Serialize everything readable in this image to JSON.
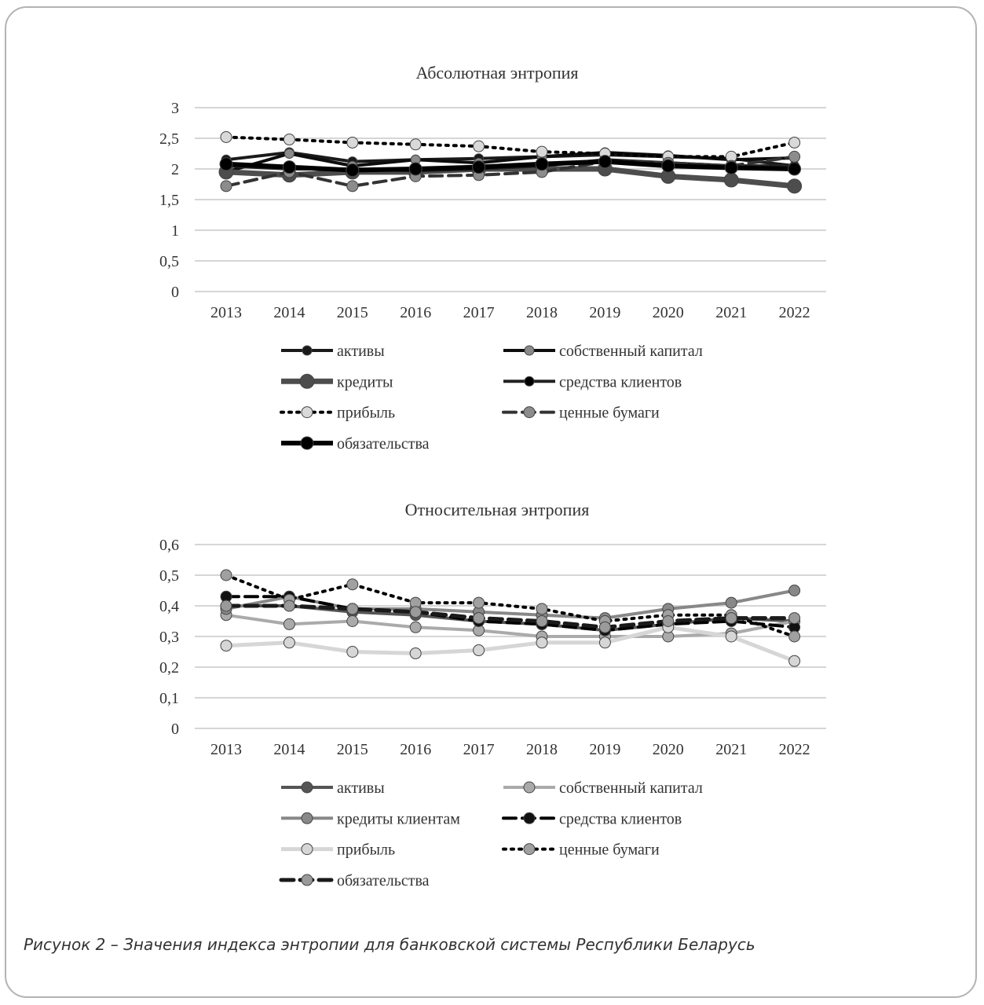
{
  "caption": "Рисунок 2 – Значения индекса энтропии для банковской системы Республики Беларусь",
  "chart_data": [
    {
      "type": "line",
      "title": "Абсолютная энтропия",
      "ylim": [
        0,
        3
      ],
      "yticks": [
        "0",
        "0,5",
        "1",
        "1,5",
        "2",
        "2,5",
        "3"
      ],
      "ytick_values": [
        0,
        0.5,
        1,
        1.5,
        2,
        2.5,
        3
      ],
      "categories": [
        "2013",
        "2014",
        "2015",
        "2016",
        "2017",
        "2018",
        "2019",
        "2020",
        "2021",
        "2022"
      ],
      "grid": true,
      "legend": "bottom",
      "series": [
        {
          "name": "активы",
          "values": [
            2.15,
            2.27,
            2.12,
            2.15,
            2.17,
            2.2,
            2.23,
            2.2,
            2.17,
            2.05
          ],
          "color": "#1a1a1a",
          "width": 4,
          "dash": "",
          "marker": 6,
          "marker_color": "#1a1a1a"
        },
        {
          "name": "собственный капитал",
          "values": [
            1.95,
            2.25,
            2.05,
            2.15,
            2.1,
            2.2,
            2.27,
            2.22,
            2.15,
            2.18
          ],
          "color": "#0d0d0d",
          "width": 4,
          "dash": "",
          "marker": 6,
          "marker_color": "#8a8a8a"
        },
        {
          "name": "кредиты",
          "values": [
            1.95,
            1.9,
            1.95,
            1.95,
            2.0,
            2.0,
            2.0,
            1.88,
            1.82,
            1.72
          ],
          "color": "#4d4d4d",
          "width": 7,
          "dash": "",
          "marker": 9,
          "marker_color": "#4d4d4d"
        },
        {
          "name": "средства клиентов",
          "values": [
            2.05,
            2.0,
            2.0,
            1.97,
            2.0,
            2.05,
            2.15,
            2.1,
            2.05,
            2.05
          ],
          "color": "#222222",
          "width": 4,
          "dash": "",
          "marker": 6,
          "marker_color": "#000000"
        },
        {
          "name": "прибыль",
          "values": [
            2.52,
            2.48,
            2.43,
            2.4,
            2.37,
            2.28,
            2.25,
            2.2,
            2.2,
            2.43
          ],
          "color": "#000000",
          "width": 4,
          "dash": "3,7",
          "marker": 7,
          "marker_color": "#d9d9d9"
        },
        {
          "name": "ценные бумаги",
          "values": [
            1.72,
            1.95,
            1.72,
            1.88,
            1.9,
            1.95,
            2.12,
            2.1,
            2.05,
            2.2
          ],
          "color": "#333333",
          "width": 4,
          "dash": "16,8",
          "marker": 7,
          "marker_color": "#8c8c8c"
        },
        {
          "name": "обязательства",
          "values": [
            2.08,
            2.03,
            1.98,
            2.0,
            2.03,
            2.08,
            2.12,
            2.05,
            2.02,
            2.0
          ],
          "color": "#000000",
          "width": 6,
          "dash": "",
          "marker": 8,
          "marker_color": "#000000"
        }
      ]
    },
    {
      "type": "line",
      "title": "Относительная энтропия",
      "ylim": [
        0,
        0.6
      ],
      "yticks": [
        "0",
        "0,1",
        "0,2",
        "0,3",
        "0,4",
        "0,5",
        "0,6"
      ],
      "ytick_values": [
        0,
        0.1,
        0.2,
        0.3,
        0.4,
        0.5,
        0.6
      ],
      "categories": [
        "2013",
        "2014",
        "2015",
        "2016",
        "2017",
        "2018",
        "2019",
        "2020",
        "2021",
        "2022"
      ],
      "grid": true,
      "legend": "bottom",
      "series": [
        {
          "name": "активы",
          "values": [
            0.4,
            0.4,
            0.38,
            0.37,
            0.35,
            0.34,
            0.32,
            0.34,
            0.36,
            0.35
          ],
          "color": "#555555",
          "width": 4,
          "dash": "",
          "marker": 7,
          "marker_color": "#555555"
        },
        {
          "name": "собственный капитал",
          "values": [
            0.37,
            0.34,
            0.35,
            0.33,
            0.32,
            0.3,
            0.3,
            0.3,
            0.31,
            0.35
          ],
          "color": "#aaaaaa",
          "width": 4,
          "dash": "",
          "marker": 7,
          "marker_color": "#aaaaaa"
        },
        {
          "name": "кредиты клиентам",
          "values": [
            0.39,
            0.43,
            0.39,
            0.39,
            0.38,
            0.37,
            0.36,
            0.39,
            0.41,
            0.45
          ],
          "color": "#888888",
          "width": 4,
          "dash": "",
          "marker": 7,
          "marker_color": "#888888"
        },
        {
          "name": "средства клиентов",
          "values": [
            0.43,
            0.43,
            0.39,
            0.38,
            0.35,
            0.34,
            0.32,
            0.34,
            0.35,
            0.33
          ],
          "color": "#000000",
          "width": 4,
          "dash": "16,8",
          "marker": 7,
          "marker_color": "#111111"
        },
        {
          "name": "прибыль",
          "values": [
            0.27,
            0.28,
            0.25,
            0.245,
            0.255,
            0.28,
            0.28,
            0.33,
            0.3,
            0.22
          ],
          "color": "#d6d6d6",
          "width": 5,
          "dash": "",
          "marker": 7,
          "marker_color": "#d6d6d6"
        },
        {
          "name": "ценные бумаги",
          "values": [
            0.5,
            0.42,
            0.47,
            0.41,
            0.41,
            0.39,
            0.35,
            0.37,
            0.37,
            0.3
          ],
          "color": "#000000",
          "width": 4,
          "dash": "3,7",
          "marker": 7,
          "marker_color": "#a0a0a0"
        },
        {
          "name": "обязательства",
          "values": [
            0.4,
            0.4,
            0.39,
            0.38,
            0.36,
            0.35,
            0.33,
            0.35,
            0.36,
            0.36
          ],
          "color": "#1a1a1a",
          "width": 5,
          "dash": "16,8",
          "marker": 7,
          "marker_color": "#9a9a9a"
        }
      ]
    }
  ]
}
